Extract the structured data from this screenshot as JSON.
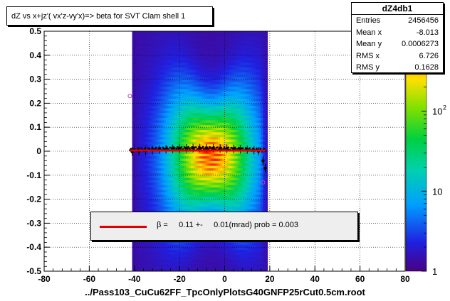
{
  "title": "dZ vs  x+jz'( vx'z-vy'x)=> beta  for SVT Clam shell 1",
  "stats": {
    "name": "dZ4db1",
    "rows": [
      {
        "label": "Entries",
        "value": "2456456"
      },
      {
        "label": "Mean x",
        "value": "-8.013"
      },
      {
        "label": "Mean y",
        "value": "0.0006273"
      },
      {
        "label": "RMS x",
        "value": "6.726"
      },
      {
        "label": "RMS y",
        "value": "0.1628"
      }
    ]
  },
  "legend": {
    "text": "β =     0.11 +-     0.01(mrad) prob = 0.003",
    "line_color": "#e00000"
  },
  "xaxis_title": "../Pass103_CuCu62FF_TpcOnlyPlotsG40GNFP25rCut0.5cm.root",
  "colors": {
    "fit_line": "#e00000",
    "profile": "#000000",
    "frame": "#000000"
  },
  "chart_data": {
    "type": "heatmap",
    "title": "dZ vs  x+jz'( vx'z-vy'x)=> beta  for SVT Clam shell 1",
    "xlim": [
      -80,
      80
    ],
    "ylim": [
      -0.5,
      0.5
    ],
    "x_ticks": [
      -80,
      -60,
      -40,
      -20,
      0,
      20,
      40,
      60,
      80
    ],
    "y_ticks": [
      -0.5,
      -0.4,
      -0.3,
      -0.2,
      -0.1,
      0,
      0.1,
      0.2,
      0.3,
      0.4,
      0.5
    ],
    "x_tick_labels": [
      "-80",
      "-60",
      "-40",
      "-20",
      "0",
      "20",
      "40",
      "60",
      "80"
    ],
    "y_tick_labels": [
      "-0.5",
      "-0.4",
      "-0.3",
      "-0.2",
      "-0.1",
      "0",
      "0.1",
      "0.2",
      "0.3",
      "0.4",
      "0.5"
    ],
    "z_log": true,
    "z_range": [
      1,
      1000
    ],
    "z_tick_labels": [
      {
        "value": 1,
        "label": "1"
      },
      {
        "value": 10,
        "label": "10"
      },
      {
        "value": 100,
        "label": "10",
        "sup": "2"
      }
    ],
    "grid": true,
    "density": {
      "x_range": [
        -41,
        19
      ],
      "peak_x": -6,
      "peak_y": -0.02,
      "sigma_x": 9,
      "sigma_y": 0.11
    },
    "fit_line": {
      "x": [
        -42,
        18
      ],
      "y": [
        0.003,
        0.003
      ],
      "slope_mrad": 0.11,
      "slope_err_mrad": 0.01,
      "prob": 0.003
    },
    "profile": {
      "x": [
        -41,
        -38,
        -35,
        -32,
        -29,
        -26,
        -23,
        -20,
        -17,
        -14,
        -11,
        -8,
        -5,
        -2,
        1,
        4,
        7,
        10,
        13,
        15,
        17,
        18
      ],
      "y": [
        -0.002,
        0.0,
        0.002,
        0.004,
        0.006,
        0.008,
        0.01,
        0.011,
        0.012,
        0.013,
        0.013,
        0.013,
        0.013,
        0.012,
        0.011,
        0.01,
        0.008,
        0.006,
        0.004,
        0.0,
        -0.04,
        -0.07
      ]
    },
    "outliers": [
      [
        -42,
        0.23
      ],
      [
        17,
        -0.13
      ]
    ]
  }
}
